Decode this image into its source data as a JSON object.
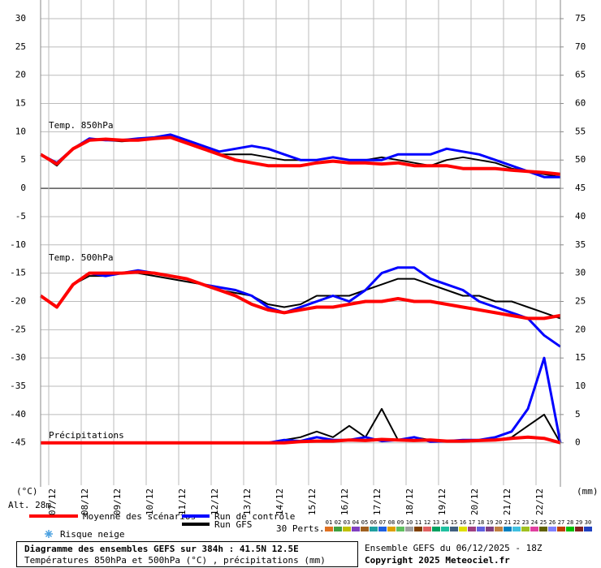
{
  "chart_data": {
    "type": "line",
    "annotations": [
      "Temp. 850hPa",
      "Temp. 500hPa",
      "Précipitations"
    ],
    "ylabel": "(°C)",
    "y2label": "(mm)",
    "altitude": "Alt. 28m",
    "x": [
      0,
      12,
      24,
      36,
      48,
      60,
      72,
      84,
      96,
      108,
      120,
      132,
      144,
      156,
      168,
      180,
      192,
      204,
      216,
      228,
      240,
      252,
      264,
      276,
      288,
      300,
      312,
      324,
      336,
      348,
      360,
      372,
      384
    ],
    "xlim": [
      0,
      384
    ],
    "xticks": [
      {
        "value": 6,
        "label": "07/12"
      },
      {
        "value": 30,
        "label": "08/12"
      },
      {
        "value": 54,
        "label": "09/12"
      },
      {
        "value": 78,
        "label": "10/12"
      },
      {
        "value": 102,
        "label": "11/12"
      },
      {
        "value": 126,
        "label": "12/12"
      },
      {
        "value": 150,
        "label": "13/12"
      },
      {
        "value": 174,
        "label": "14/12"
      },
      {
        "value": 198,
        "label": "15/12"
      },
      {
        "value": 222,
        "label": "16/12"
      },
      {
        "value": 246,
        "label": "17/12"
      },
      {
        "value": 270,
        "label": "18/12"
      },
      {
        "value": 294,
        "label": "19/12"
      },
      {
        "value": 318,
        "label": "20/12"
      },
      {
        "value": 342,
        "label": "21/12"
      },
      {
        "value": 366,
        "label": "22/12"
      }
    ],
    "ylim": [
      -52.5,
      33.3
    ],
    "yticks": [
      -45,
      -40,
      -35,
      -30,
      -25,
      -20,
      -15,
      -10,
      -5,
      0,
      5,
      10,
      15,
      20,
      25,
      30
    ],
    "y2lim": [
      -7.5,
      78.3
    ],
    "y2ticks": [
      0,
      5,
      10,
      15,
      20,
      25,
      30,
      35,
      40,
      45,
      50,
      55,
      60,
      65,
      70,
      75
    ],
    "grid": true,
    "series": [
      {
        "name": "Run GFS",
        "color": "#000000",
        "values_850": [
          6,
          4,
          7,
          8.7,
          8.5,
          8.3,
          8.5,
          9,
          9.5,
          8.3,
          7,
          6,
          6,
          6,
          5.5,
          5,
          5,
          5,
          5.5,
          5,
          5,
          5.5,
          5,
          4.5,
          4,
          5,
          5.5,
          5,
          4.5,
          3.5,
          3,
          2.5,
          2
        ],
        "values_500": [
          -19,
          -21,
          -17,
          -15.5,
          -15.5,
          -15,
          -15,
          -15.5,
          -16,
          -16.5,
          -17,
          -18,
          -18.5,
          -19,
          -20.5,
          -21,
          -20.5,
          -19,
          -19,
          -19,
          -18,
          -17,
          -16,
          -16,
          -17,
          -18,
          -19,
          -19,
          -20,
          -20,
          -21,
          -22,
          -23
        ],
        "values_precip": [
          0,
          0,
          0,
          0,
          0,
          0,
          0,
          0,
          0,
          0,
          0,
          0,
          0,
          0,
          0,
          0.5,
          1,
          2,
          1,
          3,
          1,
          6,
          0.5,
          1,
          0.5,
          0.2,
          0.3,
          0.5,
          0.5,
          1,
          3,
          5,
          0
        ]
      },
      {
        "name": "Run de contrôle",
        "color": "#0000ff",
        "values_850": [
          6,
          4.5,
          7,
          8.8,
          8.5,
          8.5,
          8.8,
          9,
          9.5,
          8.5,
          7.5,
          6.5,
          7,
          7.5,
          7,
          6,
          5,
          5,
          5.5,
          5,
          5,
          5,
          6,
          6,
          6,
          7,
          6.5,
          6,
          5,
          4,
          3,
          2,
          2
        ],
        "values_500": [
          -19,
          -21,
          -17,
          -15,
          -15.5,
          -15,
          -14.5,
          -15,
          -15.5,
          -16,
          -17,
          -17.5,
          -18,
          -19,
          -21,
          -22,
          -21,
          -20,
          -19,
          -20,
          -18,
          -15,
          -14,
          -14,
          -16,
          -17,
          -18,
          -20,
          -21,
          -22,
          -23,
          -26,
          -28
        ],
        "values_precip": [
          0,
          0,
          0,
          0,
          0,
          0,
          0,
          0,
          0,
          0,
          0,
          0,
          0,
          0,
          0,
          0.5,
          0.3,
          1,
          0.5,
          0.5,
          1,
          0.3,
          0.5,
          1,
          0.2,
          0.3,
          0.5,
          0.5,
          1,
          2,
          6,
          15,
          0
        ]
      },
      {
        "name": "Moyenne des scénarios",
        "color": "#ff0000",
        "values_850": [
          6,
          4.3,
          7,
          8.5,
          8.7,
          8.5,
          8.5,
          8.8,
          9,
          8,
          7,
          6,
          5,
          4.5,
          4,
          4,
          4,
          4.5,
          4.8,
          4.5,
          4.5,
          4.3,
          4.5,
          4,
          4,
          4,
          3.5,
          3.5,
          3.5,
          3.2,
          3,
          2.8,
          2.5
        ],
        "values_500": [
          -19,
          -21,
          -17,
          -15,
          -15,
          -15,
          -14.8,
          -15,
          -15.5,
          -16,
          -17,
          -18,
          -19,
          -20.5,
          -21.5,
          -22,
          -21.5,
          -21,
          -21,
          -20.5,
          -20,
          -20,
          -19.5,
          -20,
          -20,
          -20.5,
          -21,
          -21.5,
          -22,
          -22.5,
          -23,
          -23,
          -22.5
        ],
        "values_precip": [
          0,
          0,
          0,
          0,
          0,
          0,
          0,
          0,
          0,
          0,
          0,
          0,
          0,
          0,
          0,
          0,
          0.2,
          0.3,
          0.3,
          0.5,
          0.4,
          0.6,
          0.5,
          0.4,
          0.5,
          0.3,
          0.3,
          0.4,
          0.5,
          0.8,
          1,
          0.8,
          0
        ]
      }
    ],
    "snow_label": "Risque neige",
    "perturbations_label": "30 Perts.",
    "perturbations": [
      {
        "name": "01",
        "color": "#e07020"
      },
      {
        "name": "02",
        "color": "#40a040"
      },
      {
        "name": "03",
        "color": "#c0c000"
      },
      {
        "name": "04",
        "color": "#8040c0"
      },
      {
        "name": "05",
        "color": "#a06020"
      },
      {
        "name": "06",
        "color": "#20a0a0"
      },
      {
        "name": "07",
        "color": "#2060e0"
      },
      {
        "name": "08",
        "color": "#e0a000"
      },
      {
        "name": "09",
        "color": "#60c060"
      },
      {
        "name": "10",
        "color": "#a0a0a0"
      },
      {
        "name": "11",
        "color": "#804000"
      },
      {
        "name": "12",
        "color": "#e06060"
      },
      {
        "name": "13",
        "color": "#00a060"
      },
      {
        "name": "14",
        "color": "#20c0a0"
      },
      {
        "name": "15",
        "color": "#406080"
      },
      {
        "name": "16",
        "color": "#e0e000"
      },
      {
        "name": "17",
        "color": "#a04080"
      },
      {
        "name": "18",
        "color": "#6060e0"
      },
      {
        "name": "19",
        "color": "#804080"
      },
      {
        "name": "20",
        "color": "#c08040"
      },
      {
        "name": "21",
        "color": "#0080c0"
      },
      {
        "name": "22",
        "color": "#40c0e0"
      },
      {
        "name": "23",
        "color": "#a0c020"
      },
      {
        "name": "24",
        "color": "#e040a0"
      },
      {
        "name": "25",
        "color": "#606000"
      },
      {
        "name": "26",
        "color": "#8080ff"
      },
      {
        "name": "27",
        "color": "#c04000"
      },
      {
        "name": "28",
        "color": "#00c000"
      },
      {
        "name": "29",
        "color": "#802020"
      },
      {
        "name": "30",
        "color": "#2040c0"
      }
    ],
    "title": "Diagramme des ensembles GEFS sur 384h : 41.5N 12.5E",
    "subtitle": "Températures 850hPa et 500hPa (°C) , précipitations (mm)",
    "run_info": "Ensemble GEFS du 06/12/2025 - 18Z",
    "copyright": "Copyright 2025 Meteociel.fr"
  }
}
